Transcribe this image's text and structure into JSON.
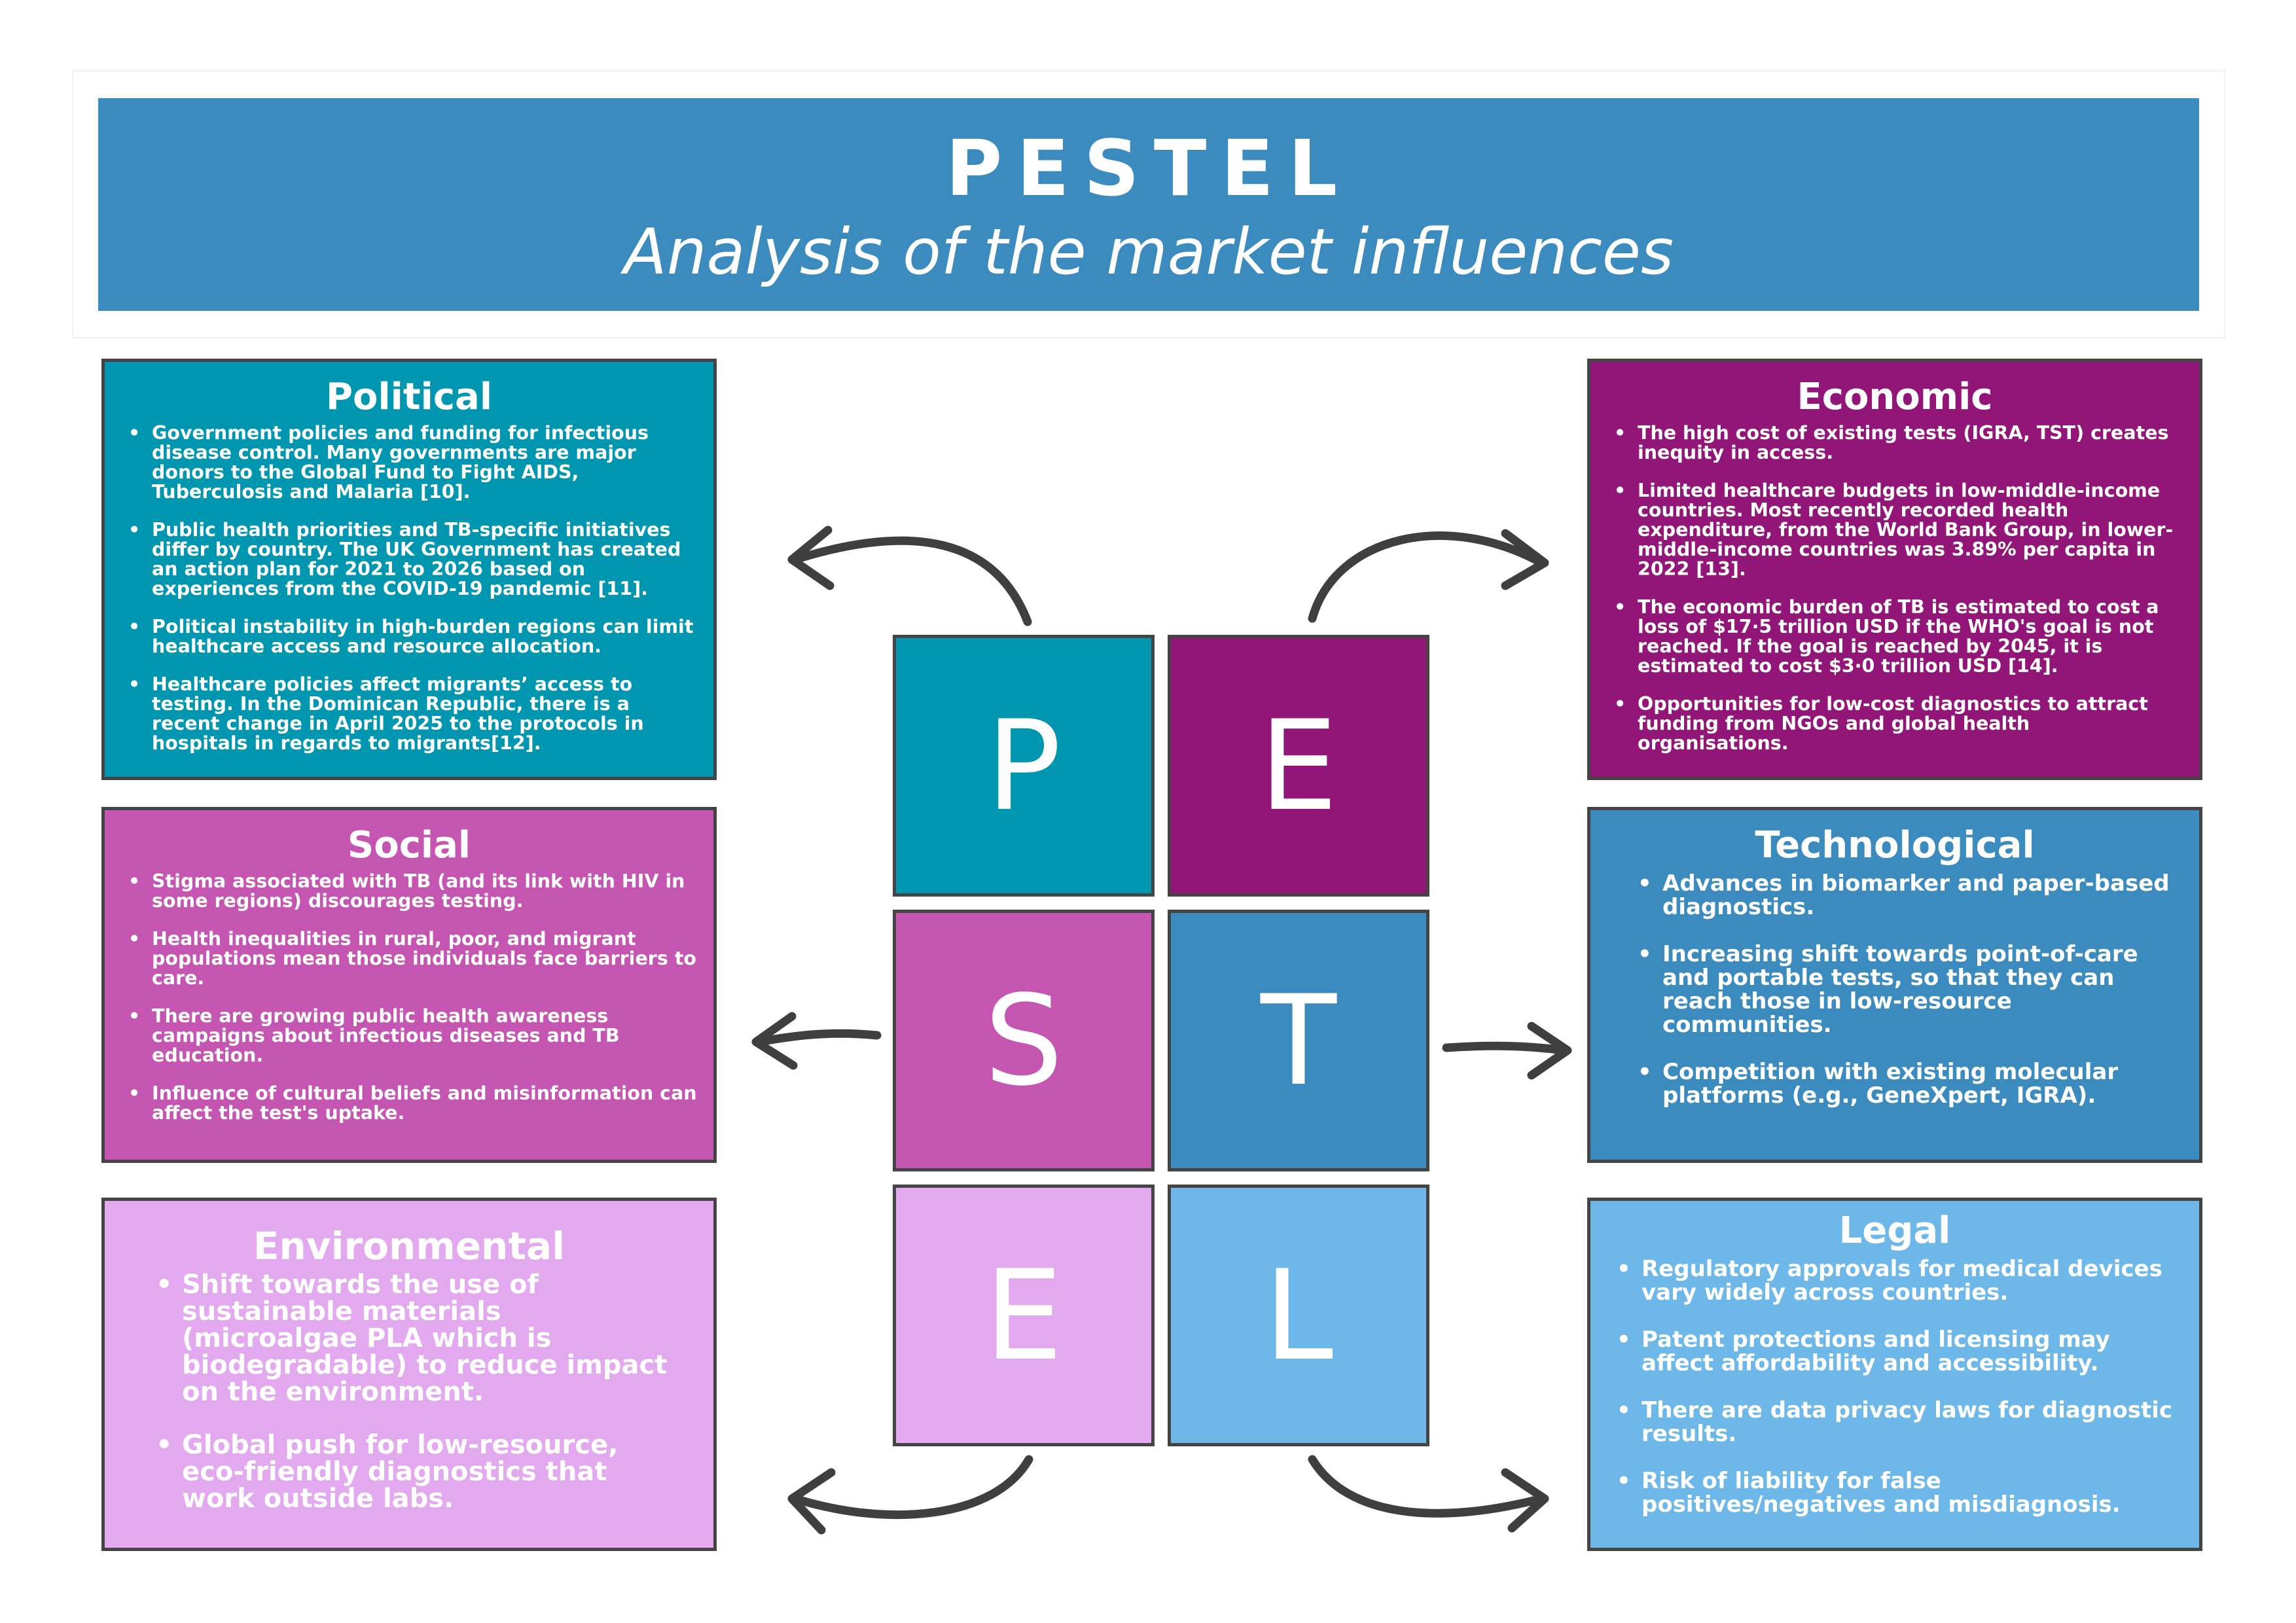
{
  "header": {
    "title": "PESTEL",
    "subtitle": "Analysis of the market influences"
  },
  "tiles": {
    "p": "P",
    "e1": "E",
    "s": "S",
    "t": "T",
    "e2": "E",
    "l": "L"
  },
  "colors": {
    "political": "#0096b0",
    "economic": "#911678",
    "social": "#c455b0",
    "technological": "#3c8bbe",
    "environmental": "#e2a9ee",
    "legal": "#6db8e8",
    "header": "#3c8bbe",
    "border": "#444444"
  },
  "political": {
    "title": "Political",
    "items": [
      "Government policies and funding for infectious disease control. Many governments are major donors to the Global Fund to Fight AIDS, Tuberculosis and Malaria [10].",
      "Public health priorities and TB-specific initiatives differ by country. The UK Government has created an action plan for 2021 to 2026 based on experiences from the COVID-19 pandemic [11].",
      "Political instability in high-burden regions can limit healthcare access and resource allocation.",
      "Healthcare policies affect migrants’ access to testing. In the Dominican Republic, there is a recent change in April 2025 to the protocols in hospitals in regards to migrants[12]."
    ]
  },
  "economic": {
    "title": "Economic",
    "items": [
      "The high cost of existing tests (IGRA, TST) creates inequity in access.",
      "Limited healthcare budgets in low-middle-income countries. Most recently recorded health expenditure, from the World Bank Group, in lower-middle-income countries was 3.89% per capita in 2022 [13].",
      "The economic burden of TB is estimated to cost a loss of $17·5 trillion USD if the WHO's goal is not reached. If the goal is reached by 2045, it is estimated to cost $3·0 trillion USD [14].",
      "Opportunities for low-cost diagnostics to attract funding from NGOs and global health organisations."
    ]
  },
  "social": {
    "title": "Social",
    "items": [
      "Stigma associated with TB (and its link with HIV in some regions) discourages testing.",
      "Health inequalities in rural, poor, and migrant populations mean those individuals face barriers to care.",
      "There are growing public health awareness campaigns about infectious diseases and TB education.",
      "Influence of cultural beliefs and misinformation can affect the test's uptake."
    ]
  },
  "technological": {
    "title": "Technological",
    "items": [
      "Advances in biomarker and paper-based diagnostics.",
      "Increasing shift towards point-of-care and portable tests, so that they can reach those in low-resource communities.",
      "Competition with existing molecular platforms (e.g., GeneXpert, IGRA)."
    ]
  },
  "environmental": {
    "title": "Environmental",
    "items": [
      "Shift towards the use of sustainable materials (microalgae PLA which is biodegradable) to reduce impact on the environment.",
      "Global push for low-resource, eco-friendly diagnostics that work outside labs."
    ]
  },
  "legal": {
    "title": "Legal",
    "items": [
      "Regulatory approvals for medical devices vary widely across countries.",
      "Patent protections and licensing may affect affordability and accessibility.",
      "There are data privacy laws for diagnostic results.",
      "Risk of liability for false positives/negatives and misdiagnosis."
    ]
  }
}
